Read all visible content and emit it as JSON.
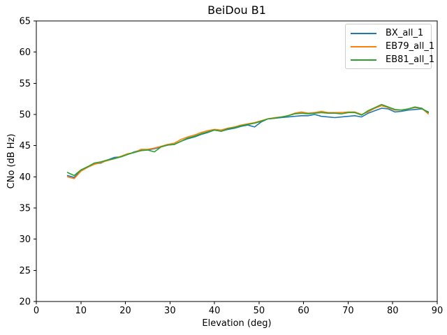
{
  "chart_data": {
    "type": "line",
    "title": "BeiDou B1",
    "xlabel": "Elevation (deg)",
    "ylabel": "CNo (dB Hz)",
    "xlim": [
      0,
      90
    ],
    "ylim": [
      20,
      65
    ],
    "xticks": [
      0,
      10,
      20,
      30,
      40,
      50,
      60,
      70,
      80,
      90
    ],
    "yticks": [
      20,
      25,
      30,
      35,
      40,
      45,
      50,
      55,
      60,
      65
    ],
    "grid": false,
    "legend_position": "upper right",
    "x": [
      7,
      8.5,
      10,
      11.5,
      13,
      14.5,
      16,
      17.5,
      19,
      20.5,
      22,
      23.5,
      25,
      26.5,
      28,
      29.5,
      31,
      32.5,
      34,
      35.5,
      37,
      38.5,
      40,
      41.5,
      43,
      44.5,
      46,
      47.5,
      49,
      50.5,
      52,
      53.5,
      55,
      56.5,
      58,
      59.5,
      61,
      62.5,
      64,
      65.5,
      67,
      68.5,
      70,
      71.5,
      73,
      74.5,
      76,
      77.5,
      79,
      80.5,
      82,
      83.5,
      85,
      86.5,
      88
    ],
    "series": [
      {
        "name": "BX_all_1",
        "color": "#1f77b4",
        "values": [
          40.2,
          39.9,
          41.0,
          41.6,
          42.1,
          42.2,
          42.7,
          43.1,
          43.2,
          43.6,
          44.0,
          44.3,
          44.3,
          44.5,
          44.8,
          45.1,
          45.2,
          45.7,
          46.1,
          46.4,
          46.8,
          47.1,
          47.5,
          47.3,
          47.6,
          47.8,
          48.1,
          48.3,
          48.0,
          48.8,
          49.3,
          49.4,
          49.5,
          49.6,
          49.7,
          49.8,
          49.8,
          50.0,
          49.7,
          49.6,
          49.5,
          49.6,
          49.7,
          49.8,
          49.6,
          50.2,
          50.6,
          51.0,
          50.9,
          50.4,
          50.5,
          50.7,
          50.8,
          50.9,
          50.4
        ]
      },
      {
        "name": "EB79_all_1",
        "color": "#ff7f0e",
        "values": [
          40.0,
          39.7,
          40.9,
          41.5,
          42.0,
          42.3,
          42.6,
          42.9,
          43.3,
          43.7,
          43.9,
          44.4,
          44.4,
          44.6,
          44.9,
          45.2,
          45.4,
          46.0,
          46.4,
          46.7,
          47.1,
          47.4,
          47.6,
          47.5,
          47.8,
          48.0,
          48.3,
          48.5,
          48.7,
          49.0,
          49.3,
          49.5,
          49.6,
          49.8,
          50.2,
          50.4,
          50.2,
          50.3,
          50.5,
          50.3,
          50.3,
          50.3,
          50.4,
          50.4,
          50.0,
          50.4,
          51.0,
          51.4,
          51.1,
          50.7,
          50.7,
          50.9,
          51.1,
          51.0,
          50.1
        ]
      },
      {
        "name": "EB81_all_1",
        "color": "#2ca02c",
        "values": [
          40.7,
          40.2,
          41.1,
          41.6,
          42.2,
          42.4,
          42.7,
          42.9,
          43.2,
          43.6,
          43.9,
          44.2,
          44.3,
          44.0,
          44.8,
          45.1,
          45.2,
          45.7,
          46.2,
          46.5,
          46.9,
          47.2,
          47.5,
          47.3,
          47.7,
          47.9,
          48.2,
          48.4,
          48.6,
          48.9,
          49.3,
          49.4,
          49.6,
          49.8,
          50.1,
          50.2,
          50.1,
          50.2,
          50.3,
          50.2,
          50.2,
          50.1,
          50.3,
          50.3,
          49.9,
          50.6,
          51.1,
          51.6,
          51.2,
          50.8,
          50.7,
          50.9,
          51.2,
          51.0,
          50.3
        ]
      }
    ]
  }
}
